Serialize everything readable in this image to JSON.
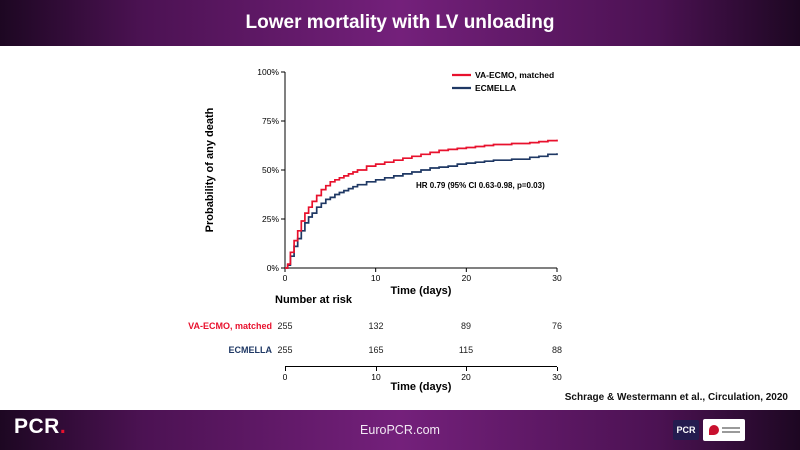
{
  "slide": {
    "title": "Lower mortality with LV unloading",
    "citation": "Schrage & Westermann et al., Circulation, 2020"
  },
  "footer": {
    "site": "EuroPCR.com",
    "brand": "PCR",
    "brand_dot": ".",
    "partner1": "PCR"
  },
  "colors": {
    "accent_red": "#e8112d",
    "navy": "#1f3864",
    "purple": "#74207b"
  },
  "chart_data": {
    "type": "line",
    "subtype": "kaplan-meier-step",
    "title": "Lower mortality with LV unloading",
    "xlabel": "Time (days)",
    "ylabel": "Probability of any death",
    "xlim": [
      0,
      30
    ],
    "ylim": [
      0,
      100
    ],
    "x_ticks": [
      0,
      10,
      20,
      30
    ],
    "y_ticks": [
      "0%",
      "25%",
      "50%",
      "75%",
      "100%"
    ],
    "grid": false,
    "legend_position": "top-right",
    "annotation": "HR 0.79 (95% CI 0.63-0.98, p=0.03)",
    "series": [
      {
        "name": "VA-ECMO, matched",
        "color": "#e8112d",
        "points": [
          [
            0,
            0
          ],
          [
            0.3,
            2
          ],
          [
            0.6,
            8
          ],
          [
            1,
            14
          ],
          [
            1.4,
            19
          ],
          [
            1.8,
            24
          ],
          [
            2.2,
            28
          ],
          [
            2.6,
            31
          ],
          [
            3,
            34
          ],
          [
            3.5,
            37
          ],
          [
            4,
            40
          ],
          [
            4.5,
            42
          ],
          [
            5,
            44
          ],
          [
            5.5,
            45
          ],
          [
            6,
            46
          ],
          [
            6.5,
            47
          ],
          [
            7,
            48
          ],
          [
            7.5,
            49
          ],
          [
            8,
            50
          ],
          [
            9,
            52
          ],
          [
            10,
            53
          ],
          [
            11,
            54
          ],
          [
            12,
            55
          ],
          [
            13,
            56
          ],
          [
            14,
            57
          ],
          [
            15,
            58
          ],
          [
            16,
            59
          ],
          [
            17,
            60
          ],
          [
            18,
            60.5
          ],
          [
            19,
            61
          ],
          [
            20,
            61.5
          ],
          [
            21,
            62
          ],
          [
            22,
            62.5
          ],
          [
            23,
            63
          ],
          [
            25,
            63.5
          ],
          [
            27,
            64
          ],
          [
            28,
            64.5
          ],
          [
            29,
            65
          ],
          [
            30,
            65.5
          ]
        ]
      },
      {
        "name": "ECMELLA",
        "color": "#1f3864",
        "points": [
          [
            0,
            0
          ],
          [
            0.3,
            1.5
          ],
          [
            0.6,
            6
          ],
          [
            1,
            11
          ],
          [
            1.4,
            15
          ],
          [
            1.8,
            19
          ],
          [
            2.2,
            23
          ],
          [
            2.6,
            26
          ],
          [
            3,
            28
          ],
          [
            3.5,
            31
          ],
          [
            4,
            33
          ],
          [
            4.5,
            35
          ],
          [
            5,
            36
          ],
          [
            5.5,
            37.5
          ],
          [
            6,
            38.5
          ],
          [
            6.5,
            39.5
          ],
          [
            7,
            40.5
          ],
          [
            7.5,
            41.5
          ],
          [
            8,
            42.5
          ],
          [
            9,
            44
          ],
          [
            10,
            45
          ],
          [
            11,
            46
          ],
          [
            12,
            47
          ],
          [
            13,
            48
          ],
          [
            14,
            49
          ],
          [
            15,
            50
          ],
          [
            16,
            51
          ],
          [
            17,
            51.5
          ],
          [
            18,
            52
          ],
          [
            19,
            53
          ],
          [
            20,
            53.5
          ],
          [
            21,
            54
          ],
          [
            22,
            54.5
          ],
          [
            23,
            55
          ],
          [
            25,
            55.5
          ],
          [
            27,
            56.5
          ],
          [
            28,
            57
          ],
          [
            29,
            58
          ],
          [
            30,
            58.5
          ]
        ]
      }
    ],
    "number_at_risk": {
      "header": "Number at risk",
      "time_points": [
        0,
        10,
        20,
        30
      ],
      "xlabel": "Time (days)",
      "rows": [
        {
          "name": "VA-ECMO, matched",
          "color": "#e8112d",
          "values": [
            255,
            132,
            89,
            76
          ]
        },
        {
          "name": "ECMELLA",
          "color": "#1f3864",
          "values": [
            255,
            165,
            115,
            88
          ]
        }
      ]
    }
  }
}
